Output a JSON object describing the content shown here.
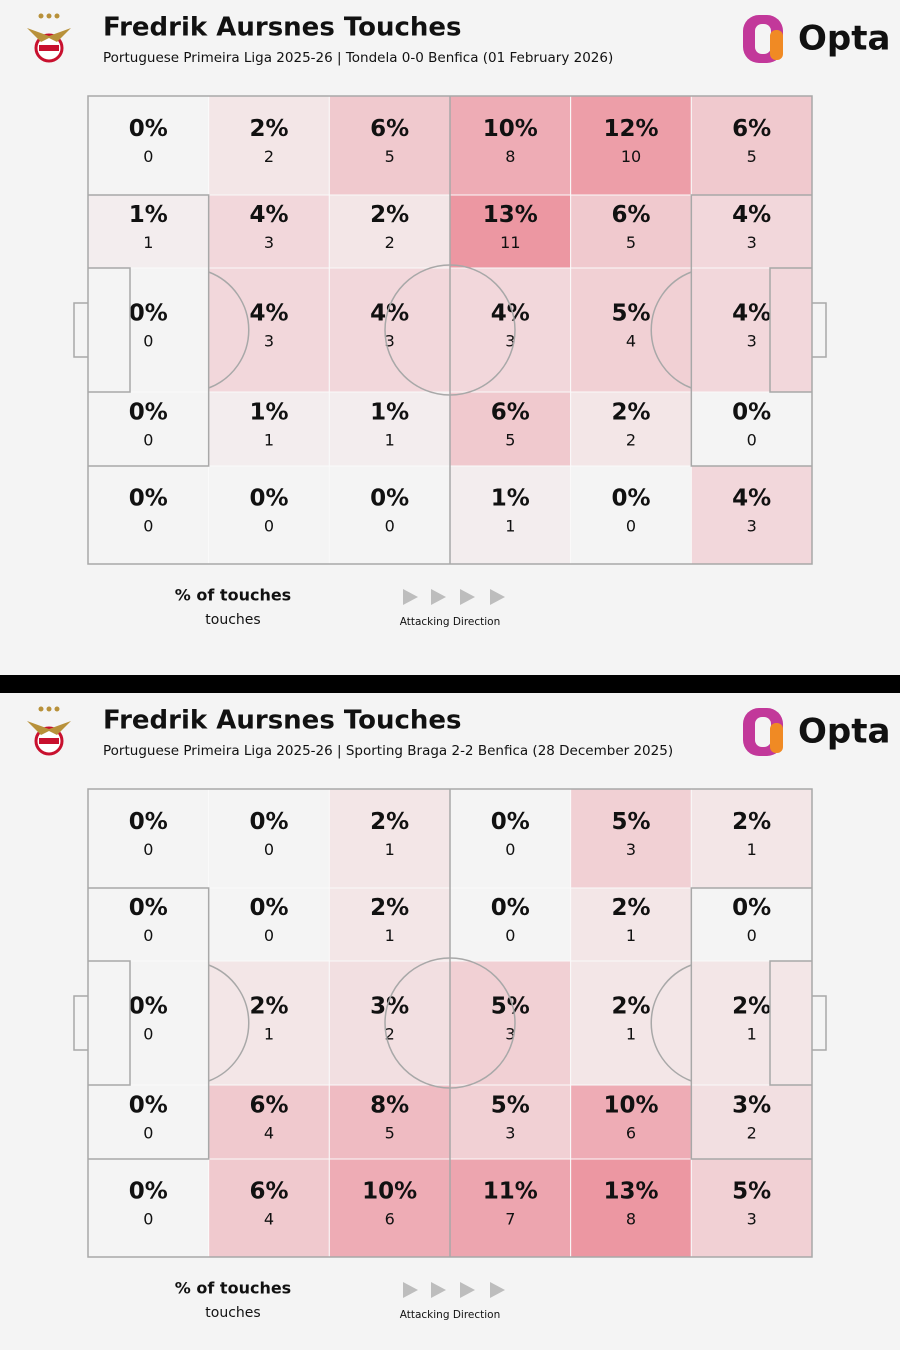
{
  "chart_data": [
    {
      "type": "heatmap",
      "title": "Fredrik Aursnes Touches",
      "subtitle": "Portuguese Primeira Liga 2025-26 | Tondela 0-0 Benfica (01 February 2026)",
      "brand": "Opta",
      "color": "#ec97a2",
      "values": [
        [
          0,
          2,
          6,
          10,
          12,
          6
        ],
        [
          1,
          4,
          2,
          13,
          6,
          4
        ],
        [
          0,
          4,
          4,
          4,
          5,
          4
        ],
        [
          0,
          1,
          1,
          6,
          2,
          0
        ],
        [
          0,
          0,
          0,
          1,
          0,
          4
        ]
      ],
      "value_labels": [
        [
          "0%",
          "2%",
          "6%",
          "10%",
          "12%",
          "6%"
        ],
        [
          "1%",
          "4%",
          "2%",
          "13%",
          "6%",
          "4%"
        ],
        [
          "0%",
          "4%",
          "4%",
          "4%",
          "5%",
          "4%"
        ],
        [
          "0%",
          "1%",
          "1%",
          "6%",
          "2%",
          "0%"
        ],
        [
          "0%",
          "0%",
          "0%",
          "1%",
          "0%",
          "4%"
        ]
      ],
      "counts": [
        [
          0,
          2,
          5,
          8,
          10,
          5
        ],
        [
          1,
          3,
          2,
          11,
          5,
          3
        ],
        [
          0,
          3,
          3,
          3,
          4,
          3
        ],
        [
          0,
          1,
          1,
          5,
          2,
          0
        ],
        [
          0,
          0,
          0,
          1,
          0,
          3
        ]
      ],
      "legend_title": "% of touches",
      "legend_subtitle": "touches",
      "direction_label": "Attacking Direction"
    },
    {
      "type": "heatmap",
      "title": "Fredrik Aursnes Touches",
      "subtitle": "Portuguese Primeira Liga 2025-26 | Sporting Braga 2-2 Benfica (28 December 2025)",
      "brand": "Opta",
      "color": "#ec97a2",
      "values": [
        [
          0,
          0,
          2,
          0,
          5,
          2
        ],
        [
          0,
          0,
          2,
          0,
          2,
          0
        ],
        [
          0,
          2,
          3,
          5,
          2,
          2
        ],
        [
          0,
          6,
          8,
          5,
          10,
          3
        ],
        [
          0,
          6,
          10,
          11,
          13,
          5
        ]
      ],
      "value_labels": [
        [
          "0%",
          "0%",
          "2%",
          "0%",
          "5%",
          "2%"
        ],
        [
          "0%",
          "0%",
          "2%",
          "0%",
          "2%",
          "0%"
        ],
        [
          "0%",
          "2%",
          "3%",
          "5%",
          "2%",
          "2%"
        ],
        [
          "0%",
          "6%",
          "8%",
          "5%",
          "10%",
          "3%"
        ],
        [
          "0%",
          "6%",
          "10%",
          "11%",
          "13%",
          "5%"
        ]
      ],
      "counts": [
        [
          0,
          0,
          1,
          0,
          3,
          1
        ],
        [
          0,
          0,
          1,
          0,
          1,
          0
        ],
        [
          0,
          1,
          2,
          3,
          1,
          1
        ],
        [
          0,
          4,
          5,
          3,
          6,
          2
        ],
        [
          0,
          4,
          6,
          7,
          8,
          3
        ]
      ],
      "legend_title": "% of touches",
      "legend_subtitle": "touches",
      "direction_label": "Attacking Direction"
    }
  ]
}
